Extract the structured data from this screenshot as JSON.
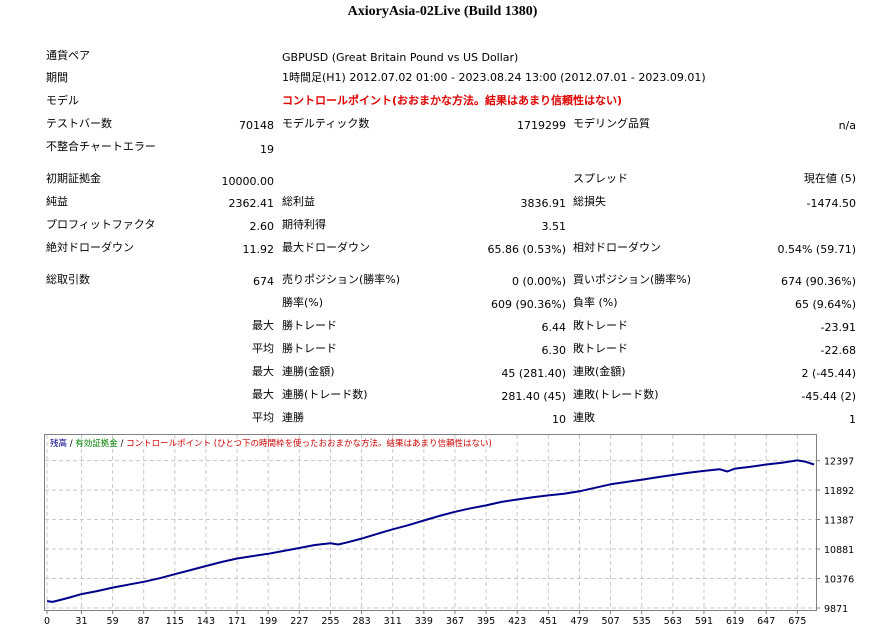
{
  "window": {
    "title": "AxioryAsia-02Live (Build 1380)"
  },
  "info": {
    "symbol_label": "通貨ペア",
    "symbol_value": "GBPUSD (Great Britain Pound vs US Dollar)",
    "period_label": "期間",
    "period_value": "1時間足(H1) 2012.07.02 01:00 - 2023.08.24 13:00 (2012.07.01 - 2023.09.01)",
    "model_label": "モデル",
    "model_value": "コントロールポイント(おおまかな方法。結果はあまり信頼性はない)"
  },
  "stats": {
    "bars_label": "テストバー数",
    "bars_value": "70148",
    "ticks_label": "モデルティック数",
    "ticks_value": "1719299",
    "quality_label": "モデリング品質",
    "quality_value": "n/a",
    "mismatch_label": "不整合チャートエラー",
    "mismatch_value": "19",
    "deposit_label": "初期証拠金",
    "deposit_value": "10000.00",
    "spread_label": "スプレッド",
    "spread_value": "現在値 (5)",
    "net_label": "純益",
    "net_value": "2362.41",
    "gross_profit_label": "総利益",
    "gross_profit_value": "3836.91",
    "gross_loss_label": "総損失",
    "gross_loss_value": "-1474.50",
    "pf_label": "プロフィットファクタ",
    "pf_value": "2.60",
    "payoff_label": "期待利得",
    "payoff_value": "3.51",
    "abs_dd_label": "絶対ドローダウン",
    "abs_dd_value": "11.92",
    "max_dd_label": "最大ドローダウン",
    "max_dd_value": "65.86 (0.53%)",
    "rel_dd_label": "相対ドローダウン",
    "rel_dd_value": "0.54% (59.71)"
  },
  "trades": {
    "total_label": "総取引数",
    "total_value": "674",
    "short_label": "売りポジション(勝率%)",
    "short_value": "0 (0.00%)",
    "long_label": "買いポジション(勝率%)",
    "long_value": "674 (90.36%)",
    "win_label": "勝率(%)",
    "win_value": "609 (90.36%)",
    "loss_label": "負率 (%)",
    "loss_value": "65 (9.64%)",
    "max_word": "最大",
    "avg_word": "平均",
    "largest_win_label": "勝トレード",
    "largest_win_value": "6.44",
    "largest_loss_label": "敗トレード",
    "largest_loss_value": "-23.91",
    "avg_win_label": "勝トレード",
    "avg_win_value": "6.30",
    "avg_loss_label": "敗トレード",
    "avg_loss_value": "-22.68",
    "max_consec_wins_label": "連勝(金額)",
    "max_consec_wins_value": "45 (281.40)",
    "max_consec_losses_label": "連敗(金額)",
    "max_consec_losses_value": "2 (-45.44)",
    "max_consec_profit_label": "連勝(トレード数)",
    "max_consec_profit_value": "281.40 (45)",
    "max_consec_loss_label": "連敗(トレード数)",
    "max_consec_loss_value": "-45.44 (2)",
    "avg_consec_wins_label": "連勝",
    "avg_consec_wins_value": "10",
    "avg_consec_losses_label": "連敗",
    "avg_consec_losses_value": "1"
  },
  "chart_legend": {
    "balance": "残高",
    "sep1": " / ",
    "equity": "有効証拠金",
    "sep2": " / ",
    "note": "コントロールポイント (ひとつ下の時間枠を使ったおおまかな方法。結果はあまり信頼性はない)",
    "balance_color": "#00008b",
    "equity_color": "#008000",
    "note_color": "#d00000"
  },
  "chart_data": {
    "type": "line",
    "title": "",
    "xlabel": "",
    "ylabel": "",
    "x_ticks": [
      0,
      31,
      59,
      87,
      115,
      143,
      171,
      199,
      227,
      255,
      283,
      311,
      339,
      367,
      395,
      423,
      451,
      479,
      507,
      535,
      563,
      591,
      619,
      647,
      675
    ],
    "y_ticks": [
      9871,
      10376,
      10881,
      11387,
      11892,
      12397
    ],
    "xlim": [
      0,
      690
    ],
    "ylim": [
      9871,
      12510
    ],
    "grid": true,
    "line_color": "#00008b",
    "series": [
      {
        "name": "残高",
        "x": [
          0,
          5,
          10,
          20,
          31,
          45,
          59,
          73,
          87,
          101,
          115,
          129,
          143,
          157,
          171,
          185,
          199,
          213,
          227,
          241,
          255,
          262,
          269,
          283,
          297,
          311,
          325,
          339,
          353,
          367,
          381,
          395,
          409,
          423,
          437,
          451,
          465,
          479,
          493,
          507,
          521,
          535,
          549,
          563,
          577,
          591,
          605,
          612,
          619,
          633,
          647,
          661,
          675,
          682,
          690
        ],
        "y": [
          9990,
          9975,
          10000,
          10050,
          10110,
          10160,
          10220,
          10270,
          10320,
          10380,
          10450,
          10520,
          10590,
          10660,
          10720,
          10760,
          10800,
          10850,
          10900,
          10950,
          10980,
          10960,
          10990,
          11060,
          11140,
          11220,
          11290,
          11370,
          11450,
          11520,
          11580,
          11630,
          11690,
          11730,
          11770,
          11800,
          11830,
          11870,
          11930,
          11990,
          12030,
          12070,
          12110,
          12150,
          12190,
          12220,
          12250,
          12210,
          12260,
          12290,
          12330,
          12360,
          12400,
          12380,
          12330
        ]
      }
    ]
  }
}
